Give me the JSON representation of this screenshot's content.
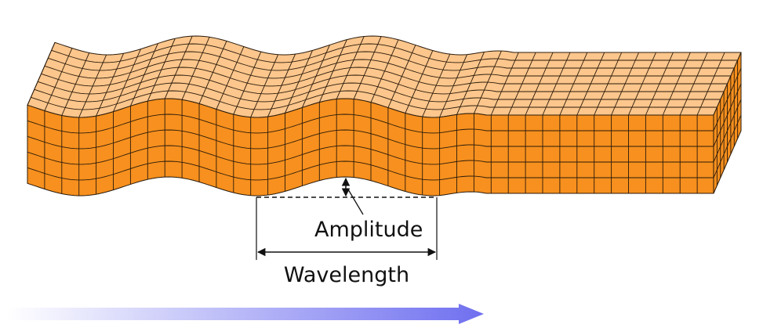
{
  "labels": {
    "amplitude": "Amplitude",
    "wavelength": "Wavelength"
  }
}
